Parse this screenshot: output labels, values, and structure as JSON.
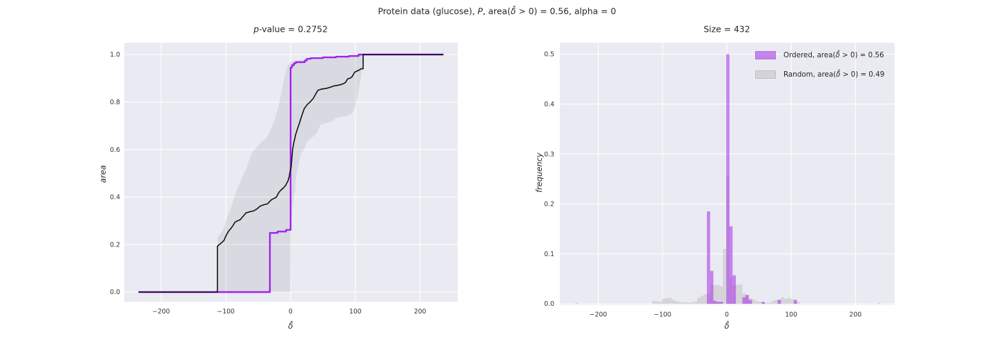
{
  "style": {
    "plot_bg": "#eaeaf2",
    "grid_color": "#ffffff",
    "purple_line": "#a020f0",
    "black_line": "#111111",
    "band_fill": "rgba(128,128,134,0.16)",
    "hist_purple": "rgba(170,60,230,0.6)",
    "hist_gray": "rgba(180,180,180,0.42)",
    "tick_text": "#333333",
    "title_text": "#262626"
  },
  "figure": {
    "suptitle_parts": [
      {
        "t": "Protein data (glucose), ",
        "i": false
      },
      {
        "t": "P",
        "i": true
      },
      {
        "t": ", area(",
        "i": false
      },
      {
        "t": "δ̂",
        "i": true
      },
      {
        "t": " > 0) = 0.56, alpha = 0",
        "i": false
      }
    ]
  },
  "chart_data": [
    {
      "id": "ecdf-comparison",
      "type": "line",
      "title_parts": [
        {
          "t": "p",
          "i": true
        },
        {
          "t": "-value = 0.2752",
          "i": false
        }
      ],
      "xlabel": "δ̂",
      "ylabel": "area",
      "xlim": [
        -257,
        258
      ],
      "ylim": [
        -0.044,
        1.05
      ],
      "grid": true,
      "xticks": [
        {
          "v": -200,
          "label": "−200"
        },
        {
          "v": -100,
          "label": "−100"
        },
        {
          "v": 0,
          "label": "0"
        },
        {
          "v": 100,
          "label": "100"
        },
        {
          "v": 200,
          "label": "200"
        }
      ],
      "yticks": [
        {
          "v": 0,
          "label": "0.0"
        },
        {
          "v": 0.2,
          "label": "0.2"
        },
        {
          "v": 0.4,
          "label": "0.4"
        },
        {
          "v": 0.6,
          "label": "0.6"
        },
        {
          "v": 0.8,
          "label": "0.8"
        },
        {
          "v": 1.0,
          "label": "1.0"
        }
      ],
      "series": [
        {
          "name": "ordered-ecdf",
          "color_key": "purple_line",
          "width": 2.4,
          "points": [
            [
              -235,
              0
            ],
            [
              -32,
              0
            ],
            [
              -32,
              0.249
            ],
            [
              -20,
              0.249
            ],
            [
              -20,
              0.255
            ],
            [
              -7,
              0.255
            ],
            [
              -7,
              0.262
            ],
            [
              0,
              0.262
            ],
            [
              0,
              0.945
            ],
            [
              2,
              0.945
            ],
            [
              2,
              0.955
            ],
            [
              5,
              0.955
            ],
            [
              5,
              0.963
            ],
            [
              8,
              0.963
            ],
            [
              8,
              0.968
            ],
            [
              22,
              0.968
            ],
            [
              22,
              0.975
            ],
            [
              25,
              0.975
            ],
            [
              25,
              0.982
            ],
            [
              31,
              0.982
            ],
            [
              31,
              0.985
            ],
            [
              50,
              0.985
            ],
            [
              50,
              0.988
            ],
            [
              70,
              0.988
            ],
            [
              70,
              0.991
            ],
            [
              90,
              0.991
            ],
            [
              90,
              0.994
            ],
            [
              105,
              0.994
            ],
            [
              105,
              1
            ],
            [
              236,
              1
            ]
          ]
        },
        {
          "name": "random-median-ecdf",
          "color_key": "black_line",
          "width": 1.6,
          "points": [
            [
              -235,
              0
            ],
            [
              -113,
              0
            ],
            [
              -113,
              0.193
            ],
            [
              -107,
              0.207
            ],
            [
              -103,
              0.217
            ],
            [
              -100,
              0.236
            ],
            [
              -96,
              0.256
            ],
            [
              -93,
              0.265
            ],
            [
              -89,
              0.28
            ],
            [
              -86,
              0.294
            ],
            [
              -82,
              0.3
            ],
            [
              -78,
              0.304
            ],
            [
              -73,
              0.32
            ],
            [
              -69,
              0.333
            ],
            [
              -63,
              0.338
            ],
            [
              -57,
              0.342
            ],
            [
              -52,
              0.35
            ],
            [
              -47,
              0.362
            ],
            [
              -41,
              0.368
            ],
            [
              -36,
              0.371
            ],
            [
              -32,
              0.382
            ],
            [
              -29,
              0.39
            ],
            [
              -25,
              0.395
            ],
            [
              -22,
              0.4
            ],
            [
              -18,
              0.42
            ],
            [
              -15,
              0.429
            ],
            [
              -11,
              0.439
            ],
            [
              -8,
              0.448
            ],
            [
              -6,
              0.458
            ],
            [
              -4,
              0.468
            ],
            [
              -2,
              0.487
            ],
            [
              -1,
              0.506
            ],
            [
              0,
              0.516
            ],
            [
              1,
              0.53
            ],
            [
              3,
              0.598
            ],
            [
              5,
              0.63
            ],
            [
              8,
              0.665
            ],
            [
              11,
              0.69
            ],
            [
              14,
              0.714
            ],
            [
              17,
              0.74
            ],
            [
              21,
              0.772
            ],
            [
              26,
              0.79
            ],
            [
              30,
              0.8
            ],
            [
              35,
              0.815
            ],
            [
              38,
              0.83
            ],
            [
              42,
              0.849
            ],
            [
              47,
              0.854
            ],
            [
              56,
              0.858
            ],
            [
              62,
              0.863
            ],
            [
              67,
              0.868
            ],
            [
              72,
              0.87
            ],
            [
              77,
              0.873
            ],
            [
              82,
              0.878
            ],
            [
              85,
              0.883
            ],
            [
              88,
              0.897
            ],
            [
              93,
              0.902
            ],
            [
              95,
              0.907
            ],
            [
              99,
              0.926
            ],
            [
              102,
              0.93
            ],
            [
              106,
              0.935
            ],
            [
              109,
              0.94
            ],
            [
              112,
              0.94
            ],
            [
              112,
              1
            ],
            [
              236,
              1
            ]
          ]
        }
      ],
      "band": {
        "name": "random-95pct-band",
        "color_key": "band_fill",
        "upper": [
          [
            -113,
            0
          ],
          [
            -113,
            0.23
          ],
          [
            -107,
            0.25
          ],
          [
            -103,
            0.27
          ],
          [
            -100,
            0.3
          ],
          [
            -97,
            0.32
          ],
          [
            -93,
            0.35
          ],
          [
            -90,
            0.37
          ],
          [
            -87,
            0.4
          ],
          [
            -83,
            0.43
          ],
          [
            -80,
            0.45
          ],
          [
            -75,
            0.48
          ],
          [
            -72,
            0.5
          ],
          [
            -68,
            0.52
          ],
          [
            -65,
            0.55
          ],
          [
            -62,
            0.57
          ],
          [
            -59,
            0.59
          ],
          [
            -56,
            0.6
          ],
          [
            -52,
            0.61
          ],
          [
            -49,
            0.62
          ],
          [
            -45,
            0.632
          ],
          [
            -40,
            0.642
          ],
          [
            -37,
            0.652
          ],
          [
            -33,
            0.668
          ],
          [
            -30,
            0.69
          ],
          [
            -27,
            0.71
          ],
          [
            -24,
            0.73
          ],
          [
            -21,
            0.758
          ],
          [
            -18,
            0.79
          ],
          [
            -15,
            0.83
          ],
          [
            -12,
            0.868
          ],
          [
            -10,
            0.9
          ],
          [
            -8,
            0.92
          ],
          [
            -6,
            0.94
          ],
          [
            -4,
            0.955
          ],
          [
            -2,
            0.963
          ],
          [
            0,
            0.968
          ],
          [
            5,
            0.972
          ],
          [
            15,
            0.975
          ],
          [
            30,
            0.978
          ],
          [
            50,
            0.982
          ],
          [
            70,
            0.986
          ],
          [
            90,
            0.99
          ],
          [
            100,
            0.995
          ],
          [
            107,
            1
          ],
          [
            112,
            1
          ]
        ],
        "lower": [
          [
            -113,
            0
          ],
          [
            0,
            0
          ],
          [
            1,
            0.3
          ],
          [
            3,
            0.357
          ],
          [
            5,
            0.4
          ],
          [
            7,
            0.424
          ],
          [
            8,
            0.47
          ],
          [
            10,
            0.51
          ],
          [
            12,
            0.53
          ],
          [
            15,
            0.58
          ],
          [
            19,
            0.592
          ],
          [
            24,
            0.627
          ],
          [
            31,
            0.646
          ],
          [
            37,
            0.66
          ],
          [
            42,
            0.675
          ],
          [
            46,
            0.704
          ],
          [
            53,
            0.71
          ],
          [
            60,
            0.715
          ],
          [
            65,
            0.72
          ],
          [
            70,
            0.733
          ],
          [
            81,
            0.738
          ],
          [
            88,
            0.743
          ],
          [
            95,
            0.752
          ],
          [
            100,
            0.78
          ],
          [
            103,
            0.82
          ],
          [
            106,
            0.86
          ],
          [
            109,
            0.907
          ],
          [
            112,
            1
          ]
        ]
      }
    },
    {
      "id": "delta-histogram",
      "type": "bar",
      "title": "Size = 432",
      "xlabel": "δ̂",
      "ylabel": "frequency",
      "xlim": [
        -261,
        261
      ],
      "ylim": [
        0,
        0.522
      ],
      "grid": true,
      "bin_width": 5,
      "xticks": [
        {
          "v": -200,
          "label": "−200"
        },
        {
          "v": -100,
          "label": "−100"
        },
        {
          "v": 0,
          "label": "0"
        },
        {
          "v": 100,
          "label": "100"
        },
        {
          "v": 200,
          "label": "200"
        }
      ],
      "yticks": [
        {
          "v": 0,
          "label": "0.0"
        },
        {
          "v": 0.1,
          "label": "0.1"
        },
        {
          "v": 0.2,
          "label": "0.2"
        },
        {
          "v": 0.3,
          "label": "0.3"
        },
        {
          "v": 0.4,
          "label": "0.4"
        },
        {
          "v": 0.5,
          "label": "0.5"
        }
      ],
      "legend": [
        {
          "key": "hist_purple",
          "parts": [
            {
              "t": "Ordered, area(",
              "i": false
            },
            {
              "t": "δ̂",
              "i": true
            },
            {
              "t": " > 0) = 0.56",
              "i": false
            }
          ]
        },
        {
          "key": "hist_gray",
          "parts": [
            {
              "t": "Random, area(",
              "i": false
            },
            {
              "t": "δ̂",
              "i": true
            },
            {
              "t": " > 0) = 0.49",
              "i": false
            }
          ]
        }
      ],
      "bars": [
        {
          "name": "random-hist",
          "color_key": "hist_gray",
          "bins": [
            [
              -236,
              0.002
            ],
            [
              -116,
              0.006
            ],
            [
              -111,
              0.005
            ],
            [
              -106,
              0.004
            ],
            [
              -101,
              0.01
            ],
            [
              -96,
              0.011
            ],
            [
              -91,
              0.012
            ],
            [
              -86,
              0.008
            ],
            [
              -81,
              0.005
            ],
            [
              -76,
              0.004
            ],
            [
              -71,
              0.003
            ],
            [
              -66,
              0.003
            ],
            [
              -61,
              0.002
            ],
            [
              -56,
              0.003
            ],
            [
              -51,
              0.005
            ],
            [
              -46,
              0.012
            ],
            [
              -41,
              0.016
            ],
            [
              -36,
              0.019
            ],
            [
              -31,
              0.02
            ],
            [
              -26,
              0.037
            ],
            [
              -21,
              0.037
            ],
            [
              -16,
              0.038
            ],
            [
              -11,
              0.035
            ],
            [
              -6,
              0.11
            ],
            [
              -1,
              0.255
            ],
            [
              4,
              0.052
            ],
            [
              9,
              0.037
            ],
            [
              14,
              0.038
            ],
            [
              19,
              0.039
            ],
            [
              24,
              0.021
            ],
            [
              29,
              0.016
            ],
            [
              34,
              0.011
            ],
            [
              39,
              0.009
            ],
            [
              44,
              0.006
            ],
            [
              49,
              0.004
            ],
            [
              54,
              0.003
            ],
            [
              59,
              0.002
            ],
            [
              64,
              0.002
            ],
            [
              69,
              0.006
            ],
            [
              74,
              0.008
            ],
            [
              79,
              0.008
            ],
            [
              84,
              0.013
            ],
            [
              89,
              0.01
            ],
            [
              94,
              0.012
            ],
            [
              99,
              0.01
            ],
            [
              104,
              0.005
            ],
            [
              109,
              0.004
            ],
            [
              234,
              0.002
            ]
          ]
        },
        {
          "name": "ordered-hist",
          "color_key": "hist_purple",
          "bins": [
            [
              -31,
              0.185
            ],
            [
              -26,
              0.066
            ],
            [
              -21,
              0.006
            ],
            [
              -16,
              0.004
            ],
            [
              -11,
              0.004
            ],
            [
              -1,
              0.5
            ],
            [
              4,
              0.155
            ],
            [
              9,
              0.057
            ],
            [
              24,
              0.013
            ],
            [
              29,
              0.018
            ],
            [
              34,
              0.008
            ],
            [
              54,
              0.004
            ],
            [
              79,
              0.008
            ],
            [
              104,
              0.008
            ]
          ]
        }
      ]
    }
  ]
}
